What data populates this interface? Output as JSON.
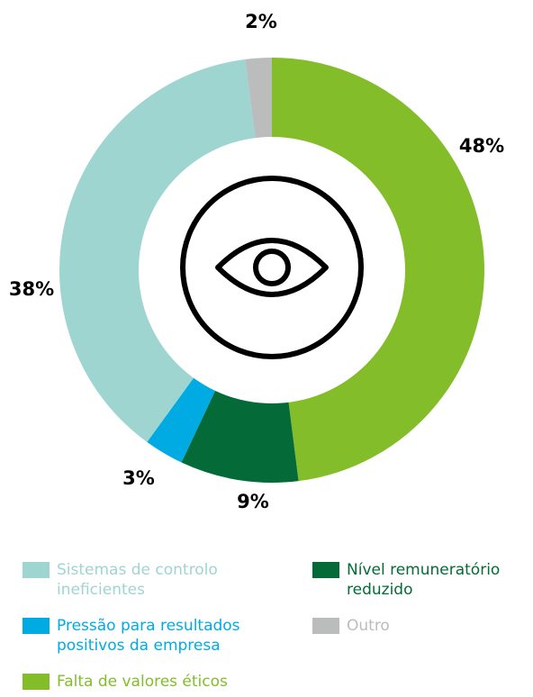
{
  "chart_data": {
    "type": "donut",
    "categories": [
      "Falta de valores éticos",
      "Nível remuneratório reduzido",
      "Pressão para resultados positivos da empresa",
      "Sistemas de controlo ineficientes",
      "Outro"
    ],
    "values": [
      48,
      9,
      3,
      38,
      2
    ],
    "value_labels": [
      "48%",
      "9%",
      "3%",
      "38%",
      "2%"
    ],
    "colors": [
      "#84bd2a",
      "#046a38",
      "#00abe4",
      "#9fd5d1",
      "#bbbcbc"
    ]
  }
}
